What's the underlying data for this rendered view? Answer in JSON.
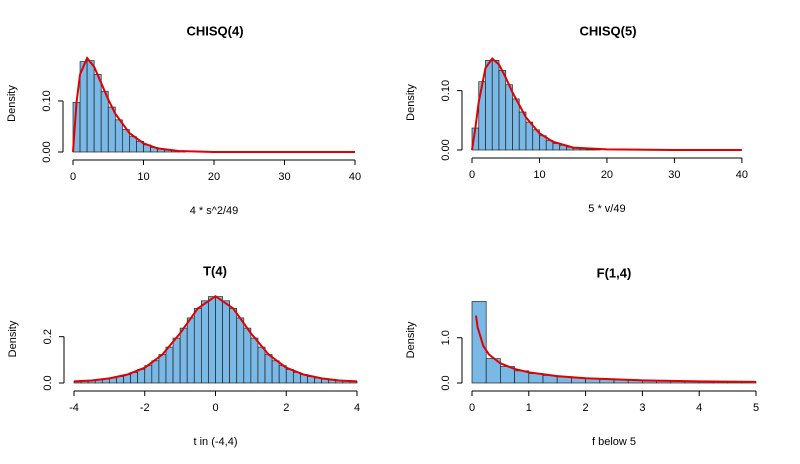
{
  "chart_data": [
    {
      "type": "histogram",
      "title": "CHISQ(4)",
      "x_label": "4 * s^2/49",
      "y_label": "Density",
      "bins": [
        0,
        1,
        2,
        3,
        4,
        5,
        6,
        7,
        8,
        9,
        10,
        11,
        12,
        13,
        14,
        15,
        16
      ],
      "values": [
        0.097,
        0.177,
        0.179,
        0.152,
        0.119,
        0.088,
        0.063,
        0.044,
        0.03,
        0.021,
        0.014,
        0.009,
        0.006,
        0.004,
        0.003,
        0.002
      ],
      "color": "#7ab8e6",
      "curve": {
        "x": [
          0,
          0.5,
          1,
          2,
          3,
          4,
          5,
          6,
          8,
          10,
          12,
          15,
          20,
          30,
          40
        ],
        "values": [
          0,
          0.097,
          0.152,
          0.184,
          0.167,
          0.135,
          0.103,
          0.075,
          0.037,
          0.017,
          0.007,
          0.002,
          0,
          0,
          0
        ],
        "color": "#e00000"
      },
      "xlim": [
        0,
        40
      ],
      "xticks": [
        0,
        10,
        20,
        30,
        40
      ],
      "ylim": [
        0,
        0.19
      ],
      "yticks": [
        {
          "value": 0,
          "label": "0.00"
        },
        {
          "value": 0.1,
          "label": "0.10"
        }
      ]
    },
    {
      "type": "histogram",
      "title": "CHISQ(5)",
      "x_label": "5 * v/49",
      "y_label": "Density",
      "bins": [
        0,
        1,
        2,
        3,
        4,
        5,
        6,
        7,
        8,
        9,
        10,
        11,
        12,
        13,
        14,
        15,
        16,
        17,
        18,
        19
      ],
      "values": [
        0.037,
        0.115,
        0.151,
        0.151,
        0.134,
        0.11,
        0.086,
        0.064,
        0.047,
        0.034,
        0.024,
        0.016,
        0.011,
        0.008,
        0.005,
        0.003,
        0.002,
        0.001,
        0.001
      ],
      "color": "#7ab8e6",
      "curve": {
        "x": [
          0,
          0.5,
          1,
          2,
          3,
          4,
          5,
          6,
          8,
          10,
          12,
          15,
          20,
          30,
          40
        ],
        "values": [
          0,
          0.037,
          0.081,
          0.138,
          0.154,
          0.144,
          0.122,
          0.097,
          0.055,
          0.028,
          0.014,
          0.004,
          0.001,
          0,
          0
        ],
        "color": "#e00000"
      },
      "xlim": [
        0,
        41.5
      ],
      "xticks": [
        0,
        10,
        20,
        30,
        40
      ],
      "ylim": [
        0,
        0.16
      ],
      "yticks": [
        {
          "value": 0,
          "label": "0.00"
        },
        {
          "value": 0.1,
          "label": "0.10"
        }
      ]
    },
    {
      "type": "histogram",
      "title": "T(4)",
      "x_label": "t in (-4,4)",
      "y_label": "Density",
      "bins": [
        -4,
        -3.8,
        -3.6,
        -3.4,
        -3.2,
        -3,
        -2.8,
        -2.6,
        -2.4,
        -2.2,
        -2,
        -1.8,
        -1.6,
        -1.4,
        -1.2,
        -1,
        -0.8,
        -0.6,
        -0.4,
        -0.2,
        0,
        0.2,
        0.4,
        0.6,
        0.8,
        1,
        1.2,
        1.4,
        1.6,
        1.8,
        2,
        2.2,
        2.4,
        2.6,
        2.8,
        3,
        3.2,
        3.4,
        3.6,
        3.8,
        4
      ],
      "values": [
        0.007,
        0.009,
        0.011,
        0.014,
        0.018,
        0.022,
        0.028,
        0.036,
        0.046,
        0.059,
        0.075,
        0.096,
        0.123,
        0.155,
        0.194,
        0.237,
        0.281,
        0.322,
        0.355,
        0.373,
        0.373,
        0.355,
        0.322,
        0.281,
        0.237,
        0.194,
        0.155,
        0.123,
        0.096,
        0.075,
        0.059,
        0.046,
        0.036,
        0.028,
        0.022,
        0.018,
        0.014,
        0.011,
        0.009,
        0.007
      ],
      "color": "#7ab8e6",
      "curve": {
        "x": [
          -4,
          -3.5,
          -3,
          -2.5,
          -2,
          -1.5,
          -1,
          -0.5,
          0,
          0.5,
          1,
          1.5,
          2,
          2.5,
          3,
          3.5,
          4
        ],
        "values": [
          0.007,
          0.011,
          0.02,
          0.036,
          0.066,
          0.123,
          0.215,
          0.322,
          0.375,
          0.322,
          0.215,
          0.123,
          0.066,
          0.036,
          0.02,
          0.011,
          0.007
        ],
        "color": "#e00000"
      },
      "xlim": [
        -4,
        4
      ],
      "xticks": [
        -4,
        -2,
        0,
        2,
        4
      ],
      "ylim": [
        0,
        0.38
      ],
      "yticks": [
        {
          "value": 0,
          "label": "0.0"
        },
        {
          "value": 0.2,
          "label": "0.2"
        }
      ]
    },
    {
      "type": "histogram",
      "title": "F(1,4)",
      "x_label": "f below 5",
      "y_label": "Density",
      "bins": [
        0,
        0.25,
        0.5,
        0.75,
        1,
        1.25,
        1.5,
        1.75,
        2,
        2.25,
        2.5,
        2.75,
        3,
        3.25,
        3.5,
        3.75,
        4,
        4.25,
        4.5,
        4.75,
        5
      ],
      "values": [
        1.8,
        0.538,
        0.363,
        0.269,
        0.209,
        0.168,
        0.138,
        0.115,
        0.097,
        0.083,
        0.072,
        0.063,
        0.055,
        0.049,
        0.043,
        0.038,
        0.034,
        0.031,
        0.028,
        0.025
      ],
      "color": "#7ab8e6",
      "curve": {
        "x": [
          0.07,
          0.1,
          0.2,
          0.3,
          0.5,
          0.75,
          1,
          1.5,
          2,
          3,
          4,
          5
        ],
        "values": [
          1.49,
          1.225,
          0.815,
          0.628,
          0.434,
          0.31,
          0.236,
          0.152,
          0.106,
          0.059,
          0.036,
          0.024
        ],
        "color": "#e00000"
      },
      "xlim": [
        0,
        5
      ],
      "xticks": [
        0,
        1,
        2,
        3,
        4,
        5
      ],
      "ylim": [
        0,
        1.9
      ],
      "yticks": [
        {
          "value": 0,
          "label": "0.0"
        },
        {
          "value": 1,
          "label": "1.0"
        }
      ]
    }
  ]
}
